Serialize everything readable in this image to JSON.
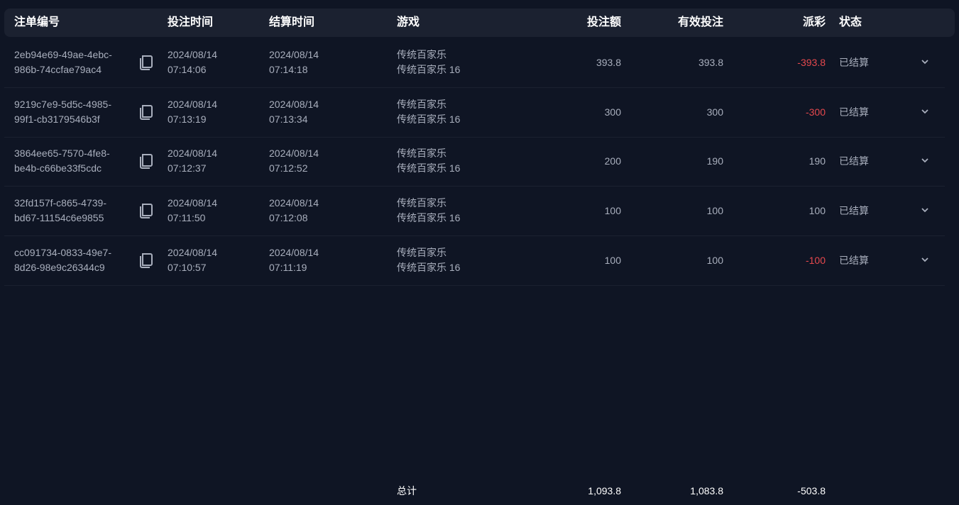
{
  "headers": {
    "id": "注单编号",
    "bet_time": "投注时间",
    "settle_time": "结算时间",
    "game": "游戏",
    "amount": "投注额",
    "valid": "有效投注",
    "payout": "派彩",
    "status": "状态"
  },
  "rows": [
    {
      "id1": "2eb94e69-49ae-4ebc-",
      "id2": "986b-74ccfae79ac4",
      "bd": "2024/08/14",
      "bt": "07:14:06",
      "sd": "2024/08/14",
      "st": "07:14:18",
      "g1": "传统百家乐",
      "g2": "传统百家乐 16",
      "amount": "393.8",
      "valid": "393.8",
      "payout": "-393.8",
      "status": "已结算"
    },
    {
      "id1": "9219c7e9-5d5c-4985-",
      "id2": "99f1-cb3179546b3f",
      "bd": "2024/08/14",
      "bt": "07:13:19",
      "sd": "2024/08/14",
      "st": "07:13:34",
      "g1": "传统百家乐",
      "g2": "传统百家乐 16",
      "amount": "300",
      "valid": "300",
      "payout": "-300",
      "status": "已结算"
    },
    {
      "id1": "3864ee65-7570-4fe8-",
      "id2": "be4b-c66be33f5cdc",
      "bd": "2024/08/14",
      "bt": "07:12:37",
      "sd": "2024/08/14",
      "st": "07:12:52",
      "g1": "传统百家乐",
      "g2": "传统百家乐 16",
      "amount": "200",
      "valid": "190",
      "payout": "190",
      "status": "已结算"
    },
    {
      "id1": "32fd157f-c865-4739-",
      "id2": "bd67-11154c6e9855",
      "bd": "2024/08/14",
      "bt": "07:11:50",
      "sd": "2024/08/14",
      "st": "07:12:08",
      "g1": "传统百家乐",
      "g2": "传统百家乐 16",
      "amount": "100",
      "valid": "100",
      "payout": "100",
      "status": "已结算"
    },
    {
      "id1": "cc091734-0833-49e7-",
      "id2": "8d26-98e9c26344c9",
      "bd": "2024/08/14",
      "bt": "07:10:57",
      "sd": "2024/08/14",
      "st": "07:11:19",
      "g1": "传统百家乐",
      "g2": "传统百家乐 16",
      "amount": "100",
      "valid": "100",
      "payout": "-100",
      "status": "已结算"
    }
  ],
  "total": {
    "label": "总计",
    "amount": "1,093.8",
    "valid": "1,083.8",
    "payout": "-503.8"
  },
  "colors": {
    "negative": "#e5484d",
    "background": "#0f1524",
    "header": "#1b2130"
  }
}
